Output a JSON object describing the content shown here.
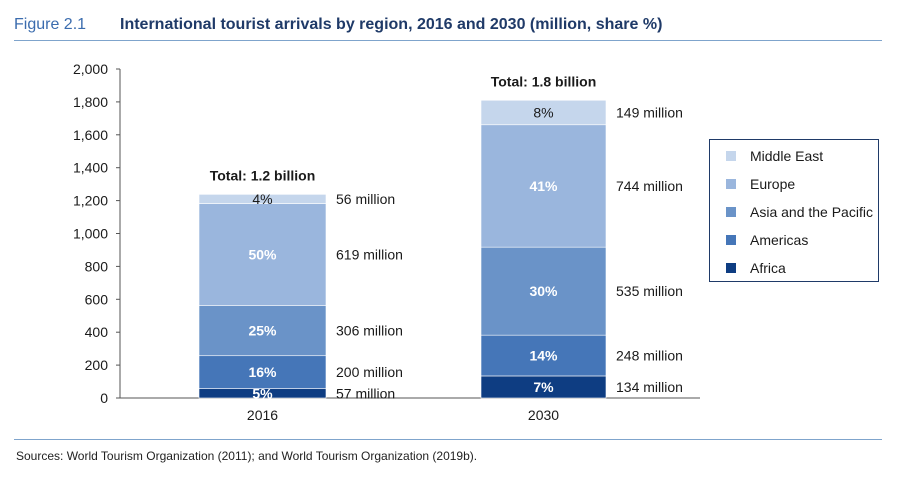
{
  "figure": {
    "number": "Figure 2.1",
    "title": "International tourist arrivals by region, 2016 and 2030 (million, share %)"
  },
  "source": "Sources:  World Tourism Organization (2011); and World Tourism Organization (2019b).",
  "chart_data": {
    "type": "bar",
    "stacked": true,
    "title": "International tourist arrivals by region, 2016 and 2030 (million, share %)",
    "categories": [
      "2016",
      "2030"
    ],
    "ylim": [
      0,
      2000
    ],
    "yticks": [
      0,
      200,
      400,
      600,
      800,
      1000,
      1200,
      1400,
      1600,
      1800,
      2000
    ],
    "ytick_labels": [
      "0",
      "200",
      "400",
      "600",
      "800",
      "1,000",
      "1,200",
      "1,400",
      "1,600",
      "1,800",
      "2,000"
    ],
    "grid": false,
    "legend_position": "right",
    "totals": [
      "Total: 1.2 billion",
      "Total: 1.8 billion"
    ],
    "series": [
      {
        "name": "Africa",
        "color": "#0e3d82",
        "values": [
          57,
          134
        ],
        "shares": [
          "5%",
          "7%"
        ],
        "value_labels": [
          "57 million",
          "134 million"
        ]
      },
      {
        "name": "Americas",
        "color": "#4576b8",
        "values": [
          200,
          248
        ],
        "shares": [
          "16%",
          "14%"
        ],
        "value_labels": [
          "200 million",
          "248 million"
        ]
      },
      {
        "name": "Asia and the Pacific",
        "color": "#6a93c8",
        "values": [
          306,
          535
        ],
        "shares": [
          "25%",
          "30%"
        ],
        "value_labels": [
          "306 million",
          "535 million"
        ]
      },
      {
        "name": "Europe",
        "color": "#9ab6dd",
        "values": [
          619,
          744
        ],
        "shares": [
          "50%",
          "41%"
        ],
        "value_labels": [
          "619 million",
          "744 million"
        ]
      },
      {
        "name": "Middle East",
        "color": "#c5d6ec",
        "values": [
          56,
          149
        ],
        "shares": [
          "4%",
          "8%"
        ],
        "value_labels": [
          "56 million",
          "149 million"
        ]
      }
    ]
  }
}
